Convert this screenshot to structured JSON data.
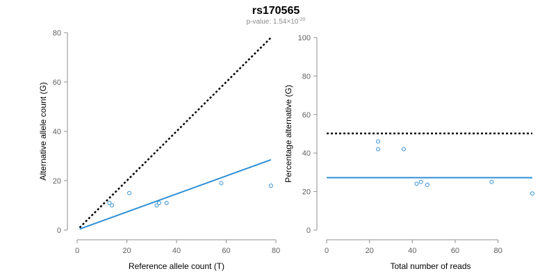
{
  "header": {
    "title": "rs170565",
    "subtitle_prefix": "p-value: 1.54×10",
    "subtitle_exponent": "-20"
  },
  "colors": {
    "points": "#2f8fd6",
    "fit": "#2f8fd6",
    "reference": "#000000"
  },
  "chart_data": [
    {
      "type": "scatter",
      "xlabel": "Reference allele count (T)",
      "ylabel": "Alternative allele count (G)",
      "xlim": [
        0,
        80
      ],
      "ylim": [
        0,
        80
      ],
      "xticks": [
        0,
        20,
        40,
        60,
        80
      ],
      "yticks": [
        0,
        20,
        40,
        60,
        80
      ],
      "points": [
        {
          "x": 13,
          "y": 11
        },
        {
          "x": 14,
          "y": 10
        },
        {
          "x": 21,
          "y": 15
        },
        {
          "x": 32,
          "y": 10
        },
        {
          "x": 33,
          "y": 11
        },
        {
          "x": 36,
          "y": 11
        },
        {
          "x": 58,
          "y": 19
        },
        {
          "x": 78,
          "y": 18
        }
      ],
      "fit_line": {
        "x": [
          1,
          78
        ],
        "y": [
          0.4,
          28.5
        ]
      },
      "reference_line": {
        "x": [
          1,
          78
        ],
        "y": [
          1,
          78
        ]
      },
      "grid": false
    },
    {
      "type": "scatter",
      "xlabel": "Total number of reads",
      "ylabel": "Percentage alternative (G)",
      "xlim": [
        0,
        97
      ],
      "ylim": [
        0,
        100
      ],
      "xticks": [
        0,
        20,
        40,
        60,
        80
      ],
      "yticks": [
        0,
        20,
        40,
        60,
        80,
        100
      ],
      "points": [
        {
          "x": 24,
          "y": 46
        },
        {
          "x": 24,
          "y": 42
        },
        {
          "x": 36,
          "y": 42
        },
        {
          "x": 42,
          "y": 24
        },
        {
          "x": 44,
          "y": 25
        },
        {
          "x": 47,
          "y": 23.5
        },
        {
          "x": 77,
          "y": 25
        },
        {
          "x": 96,
          "y": 19
        }
      ],
      "fit_line": {
        "x": [
          0,
          96
        ],
        "y": [
          27.2,
          27.2
        ]
      },
      "reference_line": {
        "x": [
          0,
          96
        ],
        "y": [
          50.2,
          50.2
        ]
      },
      "grid": false
    }
  ]
}
